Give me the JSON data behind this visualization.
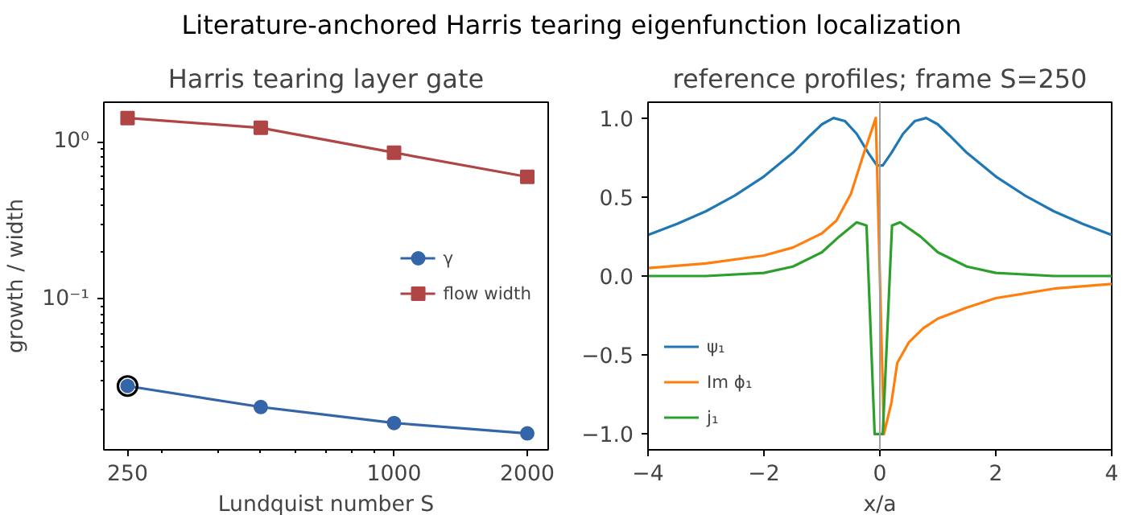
{
  "chart_data": [
    {
      "type": "line",
      "title": "Harris tearing layer gate",
      "xlabel": "Lundquist number S",
      "ylabel": "growth / width",
      "annotations": [
        "Literature-anchored Harris tearing eigenfunction localization"
      ],
      "log": "xy",
      "x": [
        250,
        500,
        1000,
        2000
      ],
      "xlim": [
        221,
        2230
      ],
      "ylim": [
        0.011,
        1.79
      ],
      "xticks": [
        250,
        1000,
        2000
      ],
      "yticks": [
        {
          "value": 0.1,
          "label": "10⁻¹"
        },
        {
          "value": 1,
          "label": "10⁰"
        }
      ],
      "grid": false,
      "legend": "center right",
      "series": [
        {
          "name": "γ",
          "color": "#3465a8",
          "marker": "circle",
          "values": [
            0.028,
            0.0206,
            0.0163,
            0.014
          ]
        },
        {
          "name": "flow width",
          "color": "#b04545",
          "marker": "square",
          "values": [
            1.42,
            1.23,
            0.855,
            0.6
          ]
        },
        {
          "type": "scatter",
          "color": "#000000",
          "marker": "circle",
          "x": [
            250
          ],
          "values": [
            0.028
          ]
        }
      ]
    },
    {
      "type": "line",
      "title": "reference profiles; frame S=250",
      "xlabel": "x/a",
      "xlim": [
        -4,
        4
      ],
      "ylim": [
        -1.1,
        1.1
      ],
      "xticks": [
        {
          "value": -4,
          "label": "−4"
        },
        {
          "value": -2,
          "label": "−2"
        },
        0,
        2,
        4
      ],
      "yticks": [
        {
          "value": -1,
          "label": "−1.0"
        },
        {
          "value": -0.5,
          "label": "−0.5"
        },
        {
          "value": 0,
          "label": "0.0"
        },
        {
          "value": 0.5,
          "label": "0.5"
        },
        {
          "value": 1,
          "label": "1.0"
        }
      ],
      "grid": false,
      "legend": "bottom left",
      "marker": "none",
      "ref_lines": [
        {
          "axis": "x",
          "value": 0,
          "color": "#a0a0a0"
        }
      ],
      "series": [
        {
          "name": "ψ₁",
          "color": "#1f77b4",
          "x": [
            -4,
            -3.5,
            -3,
            -2.5,
            -2,
            -1.5,
            -1.2,
            -1,
            -0.8,
            -0.6,
            -0.4,
            -0.2,
            -0.05,
            0.05,
            0.2,
            0.4,
            0.6,
            0.8,
            1,
            1.2,
            1.5,
            2,
            2.5,
            3,
            3.5,
            4
          ],
          "values": [
            0.26,
            0.33,
            0.41,
            0.51,
            0.63,
            0.78,
            0.89,
            0.96,
            1.0,
            0.98,
            0.9,
            0.78,
            0.7,
            0.7,
            0.78,
            0.9,
            0.98,
            1.0,
            0.96,
            0.89,
            0.78,
            0.63,
            0.51,
            0.41,
            0.33,
            0.26
          ]
        },
        {
          "name": "Im ϕ₁",
          "color": "#ff7f0e",
          "x": [
            -4,
            -3,
            -2,
            -1.5,
            -1,
            -0.75,
            -0.5,
            -0.3,
            -0.07,
            0.07,
            0.2,
            0.3,
            0.5,
            0.75,
            1,
            1.5,
            2,
            3,
            4
          ],
          "values": [
            0.05,
            0.08,
            0.13,
            0.18,
            0.27,
            0.35,
            0.52,
            0.75,
            1.0,
            -1.0,
            -0.8,
            -0.55,
            -0.42,
            -0.33,
            -0.27,
            -0.2,
            -0.14,
            -0.08,
            -0.05
          ]
        },
        {
          "name": "j₁",
          "color": "#2ca02c",
          "x": [
            -4,
            -3,
            -2,
            -1.5,
            -1,
            -0.7,
            -0.4,
            -0.23,
            -0.09,
            0.05,
            0.21,
            0.35,
            0.7,
            1,
            1.5,
            2,
            3,
            4
          ],
          "values": [
            0,
            0,
            0.02,
            0.06,
            0.15,
            0.25,
            0.34,
            0.32,
            -1.0,
            -1.0,
            0.32,
            0.34,
            0.25,
            0.15,
            0.06,
            0.02,
            0,
            0
          ]
        }
      ]
    }
  ]
}
